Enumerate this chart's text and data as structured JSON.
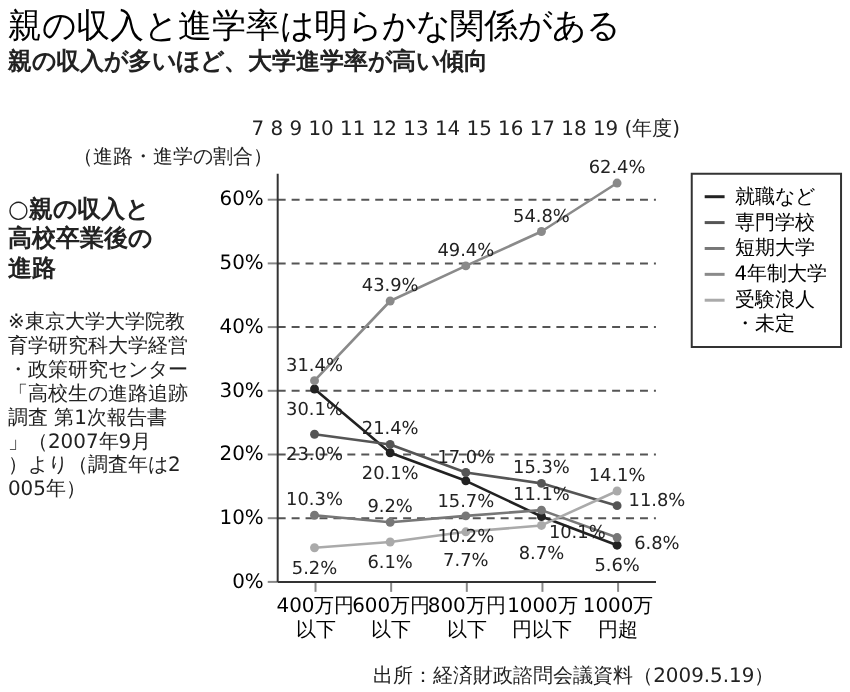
{
  "chart_data": {
    "type": "line",
    "title": "親の収入と進学率は明らかな関係がある",
    "subtitle": "親の収入が多いほど、大学進学率が高い傾向",
    "ylabel": "（進路・進学の割合）",
    "categories": [
      "400万円以下",
      "600万円以下",
      "800万円以下",
      "1000万円以下",
      "1000万円超"
    ],
    "series": [
      {
        "name": "就職など",
        "color": "#222222",
        "values": [
          30.1,
          20.1,
          15.7,
          10.1,
          5.6
        ],
        "value_labels": [
          "30.1%",
          "20.1%",
          "15.7%",
          "10.1%",
          "5.6%"
        ]
      },
      {
        "name": "専門学校",
        "color": "#555555",
        "values": [
          23.0,
          21.4,
          17.0,
          15.3,
          11.8
        ],
        "value_labels": [
          "23.0%",
          "21.4%",
          "17.0%",
          "15.3%",
          "11.8%"
        ]
      },
      {
        "name": "短期大学",
        "color": "#777777",
        "values": [
          10.3,
          9.2,
          10.2,
          11.1,
          6.8
        ],
        "value_labels": [
          "10.3%",
          "9.2%",
          "10.2%",
          "11.1%",
          "6.8%"
        ]
      },
      {
        "name": "4年制大学",
        "color": "#8a8a8a",
        "values": [
          31.4,
          43.9,
          49.4,
          54.8,
          62.4
        ],
        "value_labels": [
          "31.4%",
          "43.9%",
          "49.4%",
          "54.8%",
          "62.4%"
        ]
      },
      {
        "name": "受験浪人・未定",
        "color": "#aaaaaa",
        "values": [
          5.2,
          6.1,
          7.7,
          8.7,
          14.1
        ],
        "value_labels": [
          "5.2%",
          "6.1%",
          "7.7%",
          "8.7%",
          "14.1%"
        ]
      }
    ],
    "ylim": [
      0,
      64
    ],
    "yticks": [
      {
        "value": 0,
        "label": "0%"
      },
      {
        "value": 10,
        "label": "10%"
      },
      {
        "value": 20,
        "label": "20%"
      },
      {
        "value": 30,
        "label": "30%"
      },
      {
        "value": 40,
        "label": "40%"
      },
      {
        "value": 50,
        "label": "50%"
      },
      {
        "value": 60,
        "label": "60%"
      }
    ],
    "grid": "y",
    "legend": "right",
    "marker": "circle",
    "line_style": "solid",
    "annotations": [
      "7 8 9 10 11 12 13 14 15 16 17 18 19 (年度)",
      "○親の収入と高校卒業後の進路",
      "※東京大学大学院教育学研究科大学経営・政策研究センター「高校生の進路追跡調査 第1次報告書」（2007年9月）より（調査年は2005年）",
      "出所：経済財政諮問会議資料（2009.5.19）"
    ]
  }
}
